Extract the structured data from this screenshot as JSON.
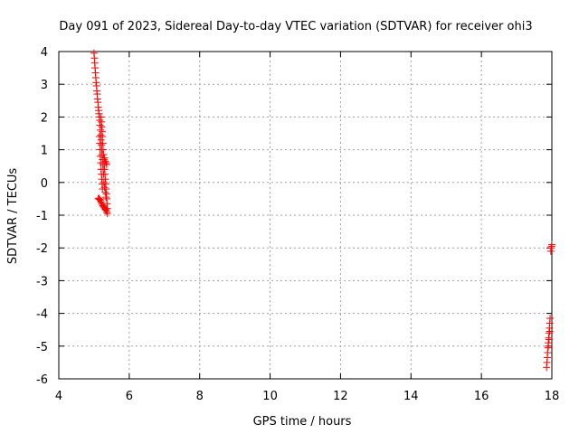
{
  "chart_data": {
    "type": "scatter",
    "title": "Day 091 of 2023, Sidereal Day-to-day VTEC variation (SDTVAR) for receiver ohi3",
    "xlabel": "GPS time / hours",
    "ylabel": "SDTVAR / TECUs",
    "xlim": [
      4,
      18
    ],
    "ylim": [
      -6,
      4
    ],
    "xticks": [
      "4",
      "6",
      "8",
      "10",
      "12",
      "14",
      "16",
      "18"
    ],
    "yticks": [
      "-6",
      "-5",
      "-4",
      "-3",
      "-2",
      "-1",
      "0",
      "1",
      "2",
      "3",
      "4"
    ],
    "grid": true,
    "marker": "+",
    "color": "#ff0000",
    "series": [
      {
        "points": [
          [
            5.0,
            3.95
          ],
          [
            5.01,
            3.8
          ],
          [
            5.02,
            3.65
          ],
          [
            5.03,
            3.5
          ],
          [
            5.04,
            3.35
          ],
          [
            5.05,
            3.2
          ],
          [
            5.06,
            3.05
          ],
          [
            5.07,
            2.95
          ],
          [
            5.08,
            2.8
          ],
          [
            5.09,
            2.7
          ],
          [
            5.1,
            2.55
          ],
          [
            5.11,
            2.45
          ],
          [
            5.12,
            2.3
          ],
          [
            5.13,
            2.2
          ],
          [
            5.14,
            2.1
          ],
          [
            5.15,
            2.0
          ],
          [
            5.16,
            1.9
          ],
          [
            5.17,
            1.75
          ],
          [
            5.18,
            1.6
          ],
          [
            5.19,
            1.45
          ],
          [
            5.2,
            1.3
          ],
          [
            5.21,
            1.15
          ],
          [
            5.22,
            1.0
          ],
          [
            5.23,
            0.85
          ],
          [
            5.24,
            0.7
          ],
          [
            5.25,
            0.55
          ],
          [
            5.26,
            0.4
          ],
          [
            5.27,
            0.25
          ],
          [
            5.15,
            1.4
          ],
          [
            5.16,
            1.2
          ],
          [
            5.17,
            1.0
          ],
          [
            5.18,
            0.8
          ],
          [
            5.19,
            0.6
          ],
          [
            5.2,
            0.4
          ],
          [
            5.21,
            0.25
          ],
          [
            5.22,
            0.1
          ],
          [
            5.23,
            -0.05
          ],
          [
            5.24,
            -0.2
          ],
          [
            5.2,
            2.0
          ],
          [
            5.21,
            1.85
          ],
          [
            5.22,
            1.7
          ],
          [
            5.23,
            1.55
          ],
          [
            5.24,
            1.4
          ],
          [
            5.25,
            1.2
          ],
          [
            5.26,
            1.0
          ],
          [
            5.27,
            0.85
          ],
          [
            5.28,
            0.7
          ],
          [
            5.29,
            0.55
          ],
          [
            5.3,
            0.4
          ],
          [
            5.31,
            0.25
          ],
          [
            5.32,
            0.1
          ],
          [
            5.33,
            -0.05
          ],
          [
            5.34,
            -0.2
          ],
          [
            5.35,
            -0.35
          ],
          [
            5.36,
            -0.5
          ],
          [
            5.37,
            -0.65
          ],
          [
            5.38,
            -0.8
          ],
          [
            5.3,
            0.75
          ],
          [
            5.32,
            0.65
          ],
          [
            5.34,
            0.6
          ],
          [
            5.36,
            0.55
          ],
          [
            5.28,
            0.0
          ],
          [
            5.3,
            -0.15
          ],
          [
            5.32,
            -0.3
          ],
          [
            5.34,
            -0.45
          ],
          [
            5.12,
            -0.5
          ],
          [
            5.14,
            -0.48
          ],
          [
            5.16,
            -0.52
          ],
          [
            5.18,
            -0.55
          ],
          [
            5.2,
            -0.6
          ],
          [
            5.22,
            -0.65
          ],
          [
            5.24,
            -0.7
          ],
          [
            5.26,
            -0.72
          ],
          [
            5.28,
            -0.75
          ],
          [
            5.3,
            -0.78
          ],
          [
            5.32,
            -0.82
          ],
          [
            5.34,
            -0.85
          ],
          [
            5.36,
            -0.9
          ],
          [
            5.38,
            -0.95
          ]
        ]
      },
      {
        "points": [
          [
            17.85,
            -5.65
          ],
          [
            17.86,
            -5.5
          ],
          [
            17.87,
            -5.35
          ],
          [
            17.88,
            -5.2
          ],
          [
            17.89,
            -5.05
          ],
          [
            17.9,
            -4.9
          ],
          [
            17.91,
            -4.75
          ],
          [
            17.92,
            -4.6
          ],
          [
            17.93,
            -4.45
          ],
          [
            17.94,
            -4.3
          ],
          [
            17.95,
            -4.15
          ],
          [
            17.9,
            -5.0
          ],
          [
            17.92,
            -4.8
          ],
          [
            17.94,
            -4.55
          ],
          [
            17.97,
            -2.1
          ],
          [
            17.98,
            -2.0
          ],
          [
            17.99,
            -1.95
          ],
          [
            18.0,
            -1.9
          ]
        ]
      }
    ]
  }
}
